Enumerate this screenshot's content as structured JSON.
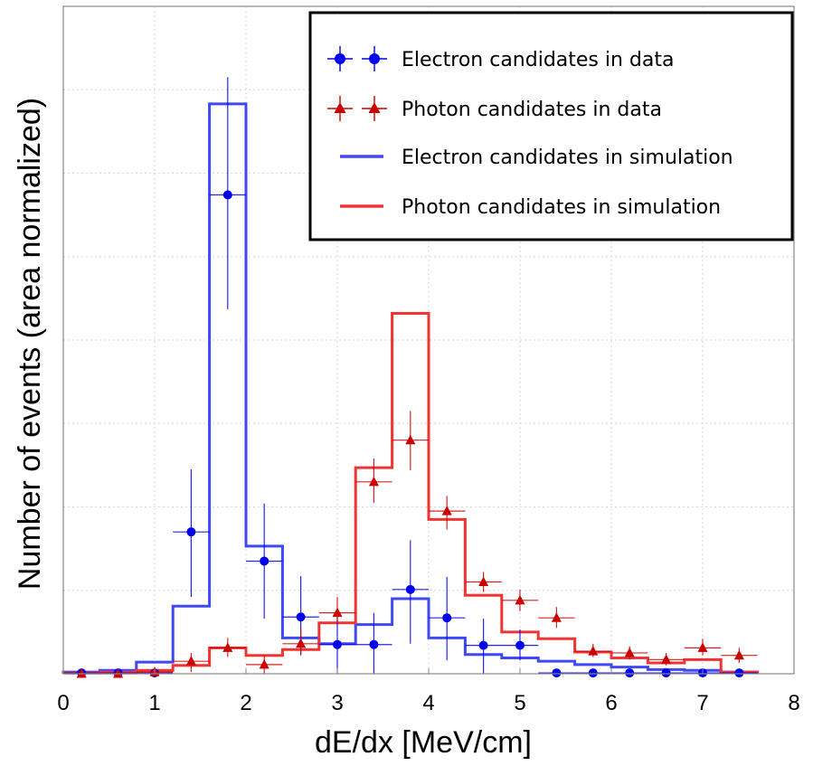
{
  "chart_data": {
    "type": "histogram",
    "xlabel": "dE/dx [MeV/cm]",
    "ylabel": "Number of events (area normalized)",
    "xlim": [
      0,
      8
    ],
    "ylim": [
      0,
      0.8
    ],
    "xticks": [
      "0",
      "1",
      "2",
      "3",
      "4",
      "5",
      "6",
      "7",
      "8"
    ],
    "grid": true,
    "legend_position": "top-right",
    "bin_width": 0.4,
    "legend": [
      {
        "label": "Electron candidates in data",
        "kind": "points-circle",
        "color": "#0000ee"
      },
      {
        "label": "Photon candidates in data",
        "kind": "points-triangle",
        "color": "#cc0000"
      },
      {
        "label": "Electron candidates in simulation",
        "kind": "line",
        "color": "#3f48f2"
      },
      {
        "label": "Photon candidates in simulation",
        "kind": "line",
        "color": "#f23333"
      }
    ],
    "series": [
      {
        "name": "Electron candidates in simulation",
        "kind": "step",
        "color": "#3f48f2",
        "bins": [
          {
            "x0": 0.0,
            "x1": 0.4,
            "y": 0.002
          },
          {
            "x0": 0.4,
            "x1": 0.8,
            "y": 0.004
          },
          {
            "x0": 0.8,
            "x1": 1.2,
            "y": 0.014
          },
          {
            "x0": 1.2,
            "x1": 1.6,
            "y": 0.081
          },
          {
            "x0": 1.6,
            "x1": 2.0,
            "y": 0.683
          },
          {
            "x0": 2.0,
            "x1": 2.4,
            "y": 0.153
          },
          {
            "x0": 2.4,
            "x1": 2.8,
            "y": 0.043
          },
          {
            "x0": 2.8,
            "x1": 3.2,
            "y": 0.036
          },
          {
            "x0": 3.2,
            "x1": 3.6,
            "y": 0.059
          },
          {
            "x0": 3.6,
            "x1": 4.0,
            "y": 0.09
          },
          {
            "x0": 4.0,
            "x1": 4.4,
            "y": 0.043
          },
          {
            "x0": 4.4,
            "x1": 4.8,
            "y": 0.023
          },
          {
            "x0": 4.8,
            "x1": 5.2,
            "y": 0.019
          },
          {
            "x0": 5.2,
            "x1": 5.6,
            "y": 0.015
          },
          {
            "x0": 5.6,
            "x1": 6.0,
            "y": 0.011
          },
          {
            "x0": 6.0,
            "x1": 6.4,
            "y": 0.008
          },
          {
            "x0": 6.4,
            "x1": 6.8,
            "y": 0.005
          },
          {
            "x0": 6.8,
            "x1": 7.2,
            "y": 0.004
          },
          {
            "x0": 7.2,
            "x1": 7.6,
            "y": 0.002
          }
        ]
      },
      {
        "name": "Photon candidates in simulation",
        "kind": "step",
        "color": "#f23333",
        "bins": [
          {
            "x0": 0.0,
            "x1": 0.4,
            "y": 0.001
          },
          {
            "x0": 0.4,
            "x1": 0.8,
            "y": 0.002
          },
          {
            "x0": 0.8,
            "x1": 1.2,
            "y": 0.004
          },
          {
            "x0": 1.2,
            "x1": 1.6,
            "y": 0.01
          },
          {
            "x0": 1.6,
            "x1": 2.0,
            "y": 0.031
          },
          {
            "x0": 2.0,
            "x1": 2.4,
            "y": 0.022
          },
          {
            "x0": 2.4,
            "x1": 2.8,
            "y": 0.029
          },
          {
            "x0": 2.8,
            "x1": 3.2,
            "y": 0.061
          },
          {
            "x0": 3.2,
            "x1": 3.6,
            "y": 0.247
          },
          {
            "x0": 3.6,
            "x1": 4.0,
            "y": 0.432
          },
          {
            "x0": 4.0,
            "x1": 4.4,
            "y": 0.185
          },
          {
            "x0": 4.4,
            "x1": 4.8,
            "y": 0.094
          },
          {
            "x0": 4.8,
            "x1": 5.2,
            "y": 0.05
          },
          {
            "x0": 5.2,
            "x1": 5.6,
            "y": 0.042
          },
          {
            "x0": 5.6,
            "x1": 6.0,
            "y": 0.026
          },
          {
            "x0": 6.0,
            "x1": 6.4,
            "y": 0.019
          },
          {
            "x0": 6.4,
            "x1": 6.8,
            "y": 0.013
          },
          {
            "x0": 6.8,
            "x1": 7.2,
            "y": 0.017
          },
          {
            "x0": 7.2,
            "x1": 7.6,
            "y": 0.002
          }
        ]
      },
      {
        "name": "Electron candidates in data",
        "kind": "points",
        "marker": "circle",
        "color": "#0000ee",
        "points": [
          {
            "x": 0.2,
            "y": 0.001,
            "ylo": 0.0,
            "yhi": 0.004
          },
          {
            "x": 0.6,
            "y": 0.001,
            "ylo": 0.0,
            "yhi": 0.004
          },
          {
            "x": 1.0,
            "y": 0.001,
            "ylo": 0.0,
            "yhi": 0.004
          },
          {
            "x": 1.4,
            "y": 0.17,
            "ylo": 0.092,
            "yhi": 0.245
          },
          {
            "x": 1.8,
            "y": 0.574,
            "ylo": 0.437,
            "yhi": 0.715
          },
          {
            "x": 2.2,
            "y": 0.135,
            "ylo": 0.066,
            "yhi": 0.204
          },
          {
            "x": 2.6,
            "y": 0.068,
            "ylo": 0.023,
            "yhi": 0.117
          },
          {
            "x": 3.0,
            "y": 0.035,
            "ylo": 0.0,
            "yhi": 0.075
          },
          {
            "x": 3.4,
            "y": 0.035,
            "ylo": 0.0,
            "yhi": 0.073
          },
          {
            "x": 3.8,
            "y": 0.101,
            "ylo": 0.036,
            "yhi": 0.16
          },
          {
            "x": 4.2,
            "y": 0.067,
            "ylo": 0.016,
            "yhi": 0.116
          },
          {
            "x": 4.6,
            "y": 0.034,
            "ylo": 0.0,
            "yhi": 0.066
          },
          {
            "x": 5.0,
            "y": 0.034,
            "ylo": 0.016,
            "yhi": 0.053
          },
          {
            "x": 5.4,
            "y": 0.001,
            "ylo": 0.0,
            "yhi": 0.004
          },
          {
            "x": 5.8,
            "y": 0.001,
            "ylo": 0.0,
            "yhi": 0.004
          },
          {
            "x": 6.2,
            "y": 0.001,
            "ylo": 0.0,
            "yhi": 0.004
          },
          {
            "x": 6.6,
            "y": 0.001,
            "ylo": 0.0,
            "yhi": 0.004
          },
          {
            "x": 7.0,
            "y": 0.001,
            "ylo": 0.0,
            "yhi": 0.004
          },
          {
            "x": 7.4,
            "y": 0.001,
            "ylo": 0.0,
            "yhi": 0.004
          }
        ]
      },
      {
        "name": "Photon candidates in data",
        "kind": "points",
        "marker": "triangle",
        "color": "#cc0000",
        "points": [
          {
            "x": 0.2,
            "y": 0.0,
            "ylo": 0.0,
            "yhi": 0.003
          },
          {
            "x": 0.6,
            "y": 0.0,
            "ylo": 0.0,
            "yhi": 0.003
          },
          {
            "x": 1.0,
            "y": 0.002,
            "ylo": 0.0,
            "yhi": 0.005
          },
          {
            "x": 1.4,
            "y": 0.015,
            "ylo": 0.002,
            "yhi": 0.025
          },
          {
            "x": 1.8,
            "y": 0.031,
            "ylo": 0.02,
            "yhi": 0.043
          },
          {
            "x": 2.2,
            "y": 0.011,
            "ylo": 0.0,
            "yhi": 0.022
          },
          {
            "x": 2.6,
            "y": 0.036,
            "ylo": 0.022,
            "yhi": 0.055
          },
          {
            "x": 3.0,
            "y": 0.073,
            "ylo": 0.06,
            "yhi": 0.092
          },
          {
            "x": 3.4,
            "y": 0.23,
            "ylo": 0.205,
            "yhi": 0.258
          },
          {
            "x": 3.8,
            "y": 0.28,
            "ylo": 0.244,
            "yhi": 0.315
          },
          {
            "x": 4.2,
            "y": 0.195,
            "ylo": 0.173,
            "yhi": 0.213
          },
          {
            "x": 4.6,
            "y": 0.11,
            "ylo": 0.098,
            "yhi": 0.122
          },
          {
            "x": 5.0,
            "y": 0.088,
            "ylo": 0.075,
            "yhi": 0.101
          },
          {
            "x": 5.4,
            "y": 0.067,
            "ylo": 0.055,
            "yhi": 0.08
          },
          {
            "x": 5.8,
            "y": 0.027,
            "ylo": 0.02,
            "yhi": 0.036
          },
          {
            "x": 6.2,
            "y": 0.025,
            "ylo": 0.017,
            "yhi": 0.033
          },
          {
            "x": 6.6,
            "y": 0.017,
            "ylo": 0.01,
            "yhi": 0.025
          },
          {
            "x": 7.0,
            "y": 0.031,
            "ylo": 0.022,
            "yhi": 0.042
          },
          {
            "x": 7.4,
            "y": 0.022,
            "ylo": 0.013,
            "yhi": 0.031
          }
        ]
      }
    ]
  }
}
